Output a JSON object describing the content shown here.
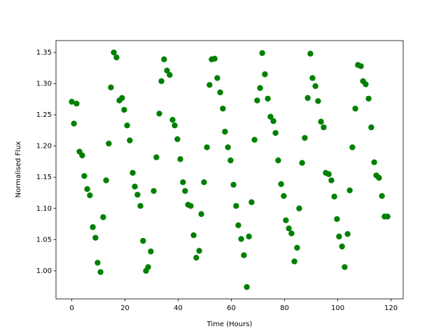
{
  "chart_data": {
    "type": "scatter",
    "xlabel": "Time (Hours)",
    "ylabel": "Normalised Flux",
    "color": "#008000",
    "x": [
      0,
      0.8,
      1.8,
      2.9,
      3.9,
      4.7,
      5.8,
      6.8,
      7.9,
      8.9,
      9.7,
      10.8,
      11.8,
      12.9,
      13.9,
      14.7,
      15.8,
      16.8,
      17.9,
      18.9,
      19.7,
      20.8,
      21.8,
      22.9,
      23.7,
      24.7,
      25.8,
      26.8,
      27.9,
      28.7,
      29.7,
      30.8,
      31.8,
      32.9,
      33.7,
      34.7,
      35.8,
      36.8,
      37.9,
      38.7,
      39.7,
      40.8,
      41.8,
      42.6,
      43.7,
      44.7,
      45.8,
      46.8,
      47.9,
      48.7,
      49.7,
      50.8,
      51.8,
      52.6,
      53.7,
      54.7,
      55.8,
      56.8,
      57.6,
      58.7,
      59.7,
      60.8,
      61.8,
      62.6,
      63.7,
      64.7,
      65.8,
      66.6,
      67.6,
      68.7,
      69.7,
      70.8,
      71.6,
      72.6,
      73.7,
      74.7,
      75.8,
      76.6,
      77.6,
      78.7,
      79.7,
      80.5,
      81.6,
      82.6,
      83.7,
      84.7,
      85.5,
      86.6,
      87.6,
      88.7,
      89.7,
      90.5,
      91.6,
      92.6,
      93.7,
      94.7,
      95.5,
      96.6,
      97.6,
      98.7,
      99.7,
      100.5,
      101.6,
      102.6,
      103.7,
      104.5,
      105.5,
      106.6,
      107.6,
      108.7,
      109.5,
      110.5,
      111.6,
      112.6,
      113.7,
      114.5,
      115.5,
      116.6,
      117.6,
      118.7
    ],
    "values": [
      1.271,
      1.236,
      1.268,
      1.191,
      1.185,
      1.152,
      1.131,
      1.121,
      1.07,
      1.053,
      1.013,
      0.998,
      1.086,
      1.145,
      1.204,
      1.294,
      1.35,
      1.342,
      1.273,
      1.277,
      1.258,
      1.233,
      1.209,
      1.157,
      1.135,
      1.122,
      1.104,
      1.048,
      1.0,
      1.006,
      1.031,
      1.128,
      1.182,
      1.252,
      1.304,
      1.339,
      1.321,
      1.314,
      1.242,
      1.233,
      1.211,
      1.179,
      1.142,
      1.128,
      1.106,
      1.104,
      1.057,
      1.021,
      1.032,
      1.091,
      1.142,
      1.198,
      1.298,
      1.339,
      1.34,
      1.309,
      1.286,
      1.26,
      1.223,
      1.198,
      1.177,
      1.138,
      1.104,
      1.073,
      1.051,
      1.025,
      0.974,
      1.055,
      1.11,
      1.21,
      1.273,
      1.293,
      1.349,
      1.315,
      1.276,
      1.247,
      1.24,
      1.221,
      1.177,
      1.139,
      1.12,
      1.081,
      1.068,
      1.06,
      1.015,
      1.037,
      1.1,
      1.173,
      1.213,
      1.277,
      1.348,
      1.309,
      1.296,
      1.272,
      1.239,
      1.23,
      1.157,
      1.155,
      1.145,
      1.119,
      1.083,
      1.055,
      1.039,
      1.006,
      1.059,
      1.129,
      1.198,
      1.26,
      1.33,
      1.328,
      1.304,
      1.299,
      1.276,
      1.23,
      1.174,
      1.153,
      1.149,
      1.12,
      1.087,
      1.087
    ],
    "xlim": [
      -5.94,
      124.6
    ],
    "ylim": [
      0.955,
      1.369
    ],
    "xticks": [
      0,
      20,
      40,
      60,
      80,
      100,
      120
    ],
    "yticks": [
      {
        "value": 1.0,
        "label": "1.00"
      },
      {
        "value": 1.05,
        "label": "1.05"
      },
      {
        "value": 1.1,
        "label": "1.10"
      },
      {
        "value": 1.15,
        "label": "1.15"
      },
      {
        "value": 1.2,
        "label": "1.20"
      },
      {
        "value": 1.25,
        "label": "1.25"
      },
      {
        "value": 1.3,
        "label": "1.30"
      },
      {
        "value": 1.35,
        "label": "1.35"
      }
    ],
    "grid": false
  }
}
